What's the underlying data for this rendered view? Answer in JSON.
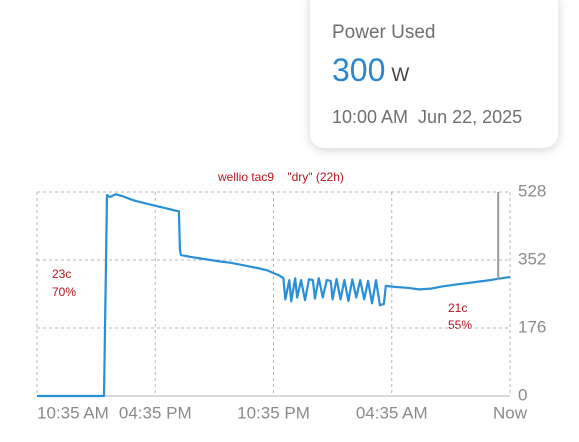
{
  "chart_data": {
    "type": "line",
    "title": "wellio tac9    \"dry\" (22h)",
    "annotations": [
      [
        "23c",
        "70%"
      ],
      [
        "21c",
        "55%"
      ]
    ],
    "xlim": [
      0,
      24
    ],
    "xticks": [
      {
        "value": 0,
        "label": "10:35 AM"
      },
      {
        "value": 6,
        "label": "04:35 PM"
      },
      {
        "value": 12,
        "label": "10:35 PM"
      },
      {
        "value": 18,
        "label": "04:35 AM"
      },
      {
        "value": 24,
        "label": "Now"
      }
    ],
    "ylim": [
      0,
      528
    ],
    "yticks": [
      0,
      176,
      352,
      528
    ],
    "grid": true,
    "x": [
      0,
      3.4,
      3.55,
      3.7,
      4.0,
      4.3,
      4.6,
      5.0,
      5.4,
      5.8,
      6.2,
      6.6,
      7.0,
      7.2,
      7.25,
      7.3,
      7.8,
      8.3,
      8.8,
      9.3,
      9.8,
      10.3,
      10.8,
      11.3,
      11.7,
      12.0,
      12.3,
      12.5,
      12.6,
      12.8,
      12.9,
      13.1,
      13.2,
      13.4,
      13.6,
      13.8,
      14.0,
      14.1,
      14.3,
      14.5,
      14.7,
      14.9,
      15.0,
      15.2,
      15.4,
      15.6,
      15.8,
      16.0,
      16.2,
      16.4,
      16.6,
      16.8,
      17.0,
      17.2,
      17.4,
      17.6,
      17.7,
      18.2,
      18.8,
      19.4,
      20.0,
      20.6,
      21.2,
      21.8,
      22.4,
      23.0,
      23.6,
      24
    ],
    "series": [
      {
        "name": "Power Used",
        "color": "#2a8fd6",
        "values": [
          0,
          0,
          520,
          515,
          522,
          518,
          512,
          505,
          500,
          495,
          490,
          485,
          480,
          478,
          380,
          365,
          360,
          356,
          352,
          348,
          345,
          340,
          335,
          330,
          325,
          318,
          312,
          305,
          250,
          300,
          245,
          305,
          255,
          300,
          248,
          302,
          300,
          252,
          305,
          255,
          300,
          298,
          250,
          303,
          250,
          300,
          246,
          302,
          255,
          300,
          250,
          298,
          240,
          300,
          235,
          238,
          285,
          282,
          280,
          276,
          278,
          284,
          288,
          292,
          296,
          300,
          305,
          308
        ]
      }
    ],
    "tooltip": {
      "title": "Power Used",
      "value": 300,
      "unit": "W",
      "time": "10:00 AM  Jun 22, 2025",
      "x": 23.4
    }
  }
}
